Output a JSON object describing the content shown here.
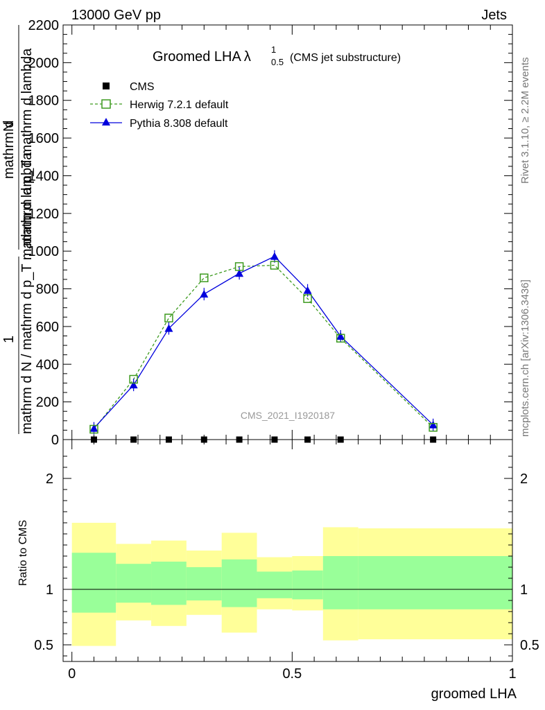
{
  "header": {
    "left": "13000 GeV pp",
    "right": "Jets"
  },
  "side": {
    "rivet": "Rivet 3.1.10, ≥ 2.2M events",
    "mcplots": "mcplots.cern.ch [arXiv:1306.3436]"
  },
  "title": {
    "main": "Groomed LHA",
    "symbol": "λ",
    "sup": "1",
    "sub": "0.5",
    "note": "(CMS jet substructure)"
  },
  "watermark": "CMS_2021_I1920187",
  "ylabel": {
    "num": "1",
    "den": "mathrm d N / mathrm d p_T mathrm d lambda",
    "top_num": "mathrm d",
    "top_N": "N",
    "top_den": "mathrm d p_T mathrm d lambda"
  },
  "ratio_ylabel": "Ratio to CMS",
  "xlabel": "groomed LHA",
  "legend": {
    "cms": "CMS",
    "herwig": "Herwig 7.2.1 default",
    "pythia": "Pythia 8.308 default"
  },
  "colors": {
    "herwig": "#3c9a1e",
    "pythia": "#0000dd",
    "band_inner": "#99ff99",
    "band_outer": "#ffff99"
  },
  "chart_data": [
    {
      "type": "line",
      "panel": "main",
      "xlim": [
        -0.02,
        1.0
      ],
      "ylim": [
        0,
        2200
      ],
      "yticks": [
        0,
        200,
        400,
        600,
        800,
        1000,
        1200,
        1400,
        1600,
        1800,
        2000,
        2200
      ],
      "ytick_labels": [
        "0",
        "200",
        "400",
        "600",
        "800",
        "1000",
        "1200",
        "1400",
        "1600",
        "1800",
        "2000",
        "2200"
      ],
      "series": [
        {
          "name": "CMS",
          "marker": "square-filled",
          "x": [
            0.05,
            0.14,
            0.22,
            0.3,
            0.38,
            0.46,
            0.535,
            0.61,
            0.82
          ],
          "y": [
            0,
            0,
            0,
            0,
            0,
            0,
            0,
            0,
            0
          ]
        },
        {
          "name": "Herwig 7.2.1 default",
          "marker": "square-open",
          "line": "dashed",
          "x": [
            0.05,
            0.14,
            0.22,
            0.3,
            0.38,
            0.46,
            0.535,
            0.61,
            0.82
          ],
          "y": [
            55,
            320,
            645,
            858,
            918,
            925,
            748,
            538,
            65
          ]
        },
        {
          "name": "Pythia 8.308 default",
          "marker": "triangle-filled",
          "line": "solid",
          "x": [
            0.05,
            0.14,
            0.22,
            0.3,
            0.38,
            0.46,
            0.535,
            0.61,
            0.82
          ],
          "y": [
            60,
            290,
            590,
            772,
            882,
            972,
            792,
            548,
            78
          ]
        }
      ]
    },
    {
      "type": "area",
      "panel": "ratio",
      "xlim": [
        -0.02,
        1.0
      ],
      "ylim": [
        0.35,
        2.35
      ],
      "yticks": [
        0.5,
        1,
        2
      ],
      "ytick_labels": [
        "0.5",
        "1",
        "2"
      ],
      "xticks": [
        0,
        0.5,
        1
      ],
      "xtick_labels": [
        "0",
        "0.5",
        "1"
      ],
      "reference": 1,
      "bins": [
        {
          "x0": 0.0,
          "x1": 0.1,
          "inner": [
            0.79,
            1.33
          ],
          "outer": [
            0.49,
            1.6
          ]
        },
        {
          "x0": 0.1,
          "x1": 0.18,
          "inner": [
            0.88,
            1.23
          ],
          "outer": [
            0.72,
            1.41
          ]
        },
        {
          "x0": 0.18,
          "x1": 0.26,
          "inner": [
            0.86,
            1.25
          ],
          "outer": [
            0.67,
            1.44
          ]
        },
        {
          "x0": 0.26,
          "x1": 0.34,
          "inner": [
            0.9,
            1.2
          ],
          "outer": [
            0.77,
            1.35
          ]
        },
        {
          "x0": 0.34,
          "x1": 0.42,
          "inner": [
            0.84,
            1.27
          ],
          "outer": [
            0.61,
            1.51
          ]
        },
        {
          "x0": 0.42,
          "x1": 0.5,
          "inner": [
            0.92,
            1.16
          ],
          "outer": [
            0.82,
            1.29
          ]
        },
        {
          "x0": 0.5,
          "x1": 0.57,
          "inner": [
            0.91,
            1.17
          ],
          "outer": [
            0.81,
            1.3
          ]
        },
        {
          "x0": 0.57,
          "x1": 0.65,
          "inner": [
            0.82,
            1.3
          ],
          "outer": [
            0.54,
            1.56
          ]
        },
        {
          "x0": 0.65,
          "x1": 1.0,
          "inner": [
            0.82,
            1.3
          ],
          "outer": [
            0.55,
            1.55
          ]
        }
      ]
    }
  ]
}
